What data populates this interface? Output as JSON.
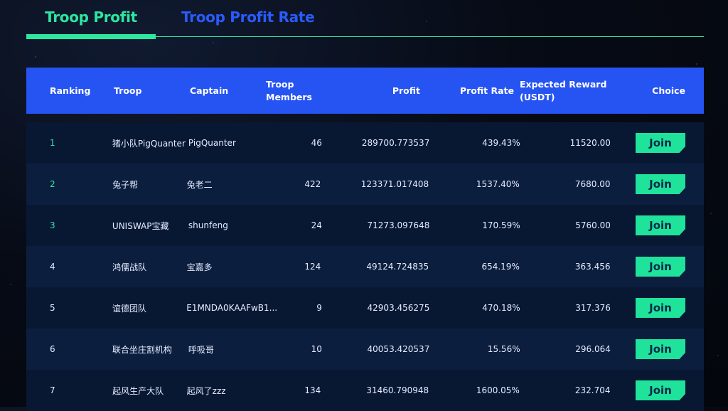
{
  "tabs": {
    "profit": "Troop Profit",
    "rate": "Troop Profit Rate"
  },
  "colors": {
    "accent": "#2de6a0",
    "header": "#2654f2",
    "tab_inactive": "#2a5bff"
  },
  "table": {
    "headers": {
      "ranking": "Ranking",
      "troop": "Troop",
      "captain": "Captain",
      "members": "Troop Members",
      "profit": "Profit",
      "rate": "Profit Rate",
      "reward": "Expected Reward (USDT)",
      "choice": "Choice"
    },
    "join_label": "Join",
    "rows": [
      {
        "rank": "1",
        "troop": "猪小队PigQuanter",
        "captain": "PigQuanter",
        "members": "46",
        "profit": "289700.773537",
        "rate": "439.43%",
        "reward": "11520.00"
      },
      {
        "rank": "2",
        "troop": "兔子帮",
        "captain": "兔老二",
        "members": "422",
        "profit": "123371.017408",
        "rate": "1537.40%",
        "reward": "7680.00"
      },
      {
        "rank": "3",
        "troop": "UNISWAP宝藏",
        "captain": "shunfeng",
        "members": "24",
        "profit": "71273.097648",
        "rate": "170.59%",
        "reward": "5760.00"
      },
      {
        "rank": "4",
        "troop": "鸿儒战队",
        "captain": "宝嘉多",
        "members": "124",
        "profit": "49124.724835",
        "rate": "654.19%",
        "reward": "363.456"
      },
      {
        "rank": "5",
        "troop": "谊德团队",
        "captain": "E1MNDA0KAAFwB1...",
        "members": "9",
        "profit": "42903.456275",
        "rate": "470.18%",
        "reward": "317.376"
      },
      {
        "rank": "6",
        "troop": "联合坐庄割机构",
        "captain": "呼吸哥",
        "members": "10",
        "profit": "40053.420537",
        "rate": "15.56%",
        "reward": "296.064"
      },
      {
        "rank": "7",
        "troop": "起风生产大队",
        "captain": "起风了zzz",
        "members": "134",
        "profit": "31460.790948",
        "rate": "1600.05%",
        "reward": "232.704"
      }
    ]
  }
}
